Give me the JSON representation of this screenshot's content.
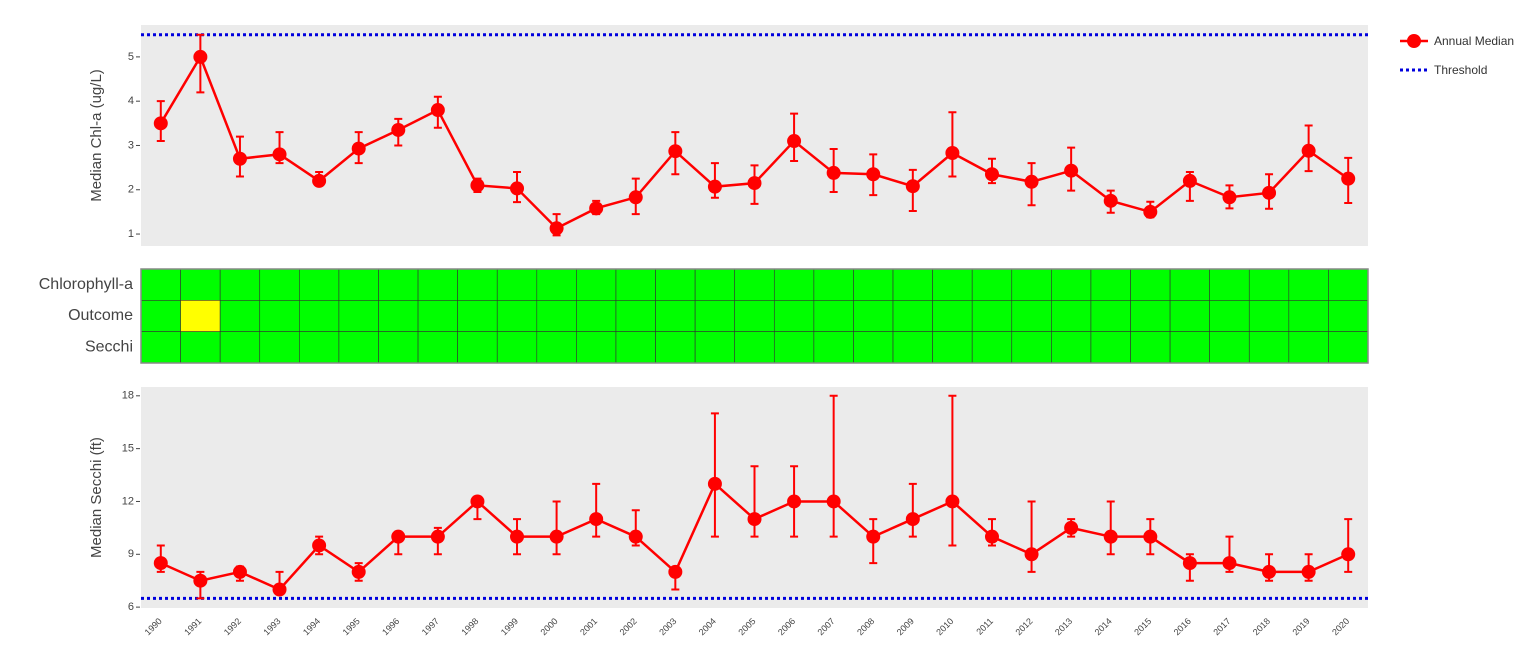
{
  "chart_data": [
    {
      "type": "line",
      "ylabel": "Median Chl-a (ug/L)",
      "series": [
        {
          "name": "Annual Median",
          "color": "#ff0000",
          "values": [
            3.5,
            5.0,
            2.7,
            2.8,
            2.2,
            2.93,
            3.35,
            3.8,
            2.1,
            2.03,
            1.13,
            1.58,
            1.83,
            2.87,
            2.07,
            2.15,
            3.1,
            2.38,
            2.35,
            2.08,
            2.83,
            2.35,
            2.18,
            2.43,
            1.75,
            1.5,
            2.2,
            1.83,
            1.93,
            2.88,
            2.25
          ],
          "upper": [
            4.0,
            5.5,
            3.2,
            3.3,
            2.4,
            3.3,
            3.6,
            4.1,
            2.25,
            2.4,
            1.45,
            1.75,
            2.25,
            3.3,
            2.6,
            2.55,
            3.72,
            2.92,
            2.8,
            2.45,
            3.75,
            2.7,
            2.6,
            2.95,
            1.98,
            1.73,
            2.4,
            2.1,
            2.35,
            3.45,
            2.72
          ],
          "lower": [
            3.1,
            4.2,
            2.3,
            2.6,
            2.1,
            2.6,
            3.0,
            3.4,
            1.95,
            1.72,
            0.97,
            1.45,
            1.45,
            2.35,
            1.82,
            1.68,
            2.65,
            1.95,
            1.88,
            1.52,
            2.3,
            2.15,
            1.65,
            1.98,
            1.48,
            1.38,
            1.75,
            1.58,
            1.57,
            2.42,
            1.7
          ]
        }
      ],
      "threshold": {
        "name": "Threshold",
        "color": "#0000dd",
        "value": 5.5
      },
      "ylim": [
        0.73,
        5.72
      ],
      "yticks": [
        1,
        2,
        3,
        4,
        5
      ],
      "grid": false
    },
    {
      "type": "heatmap",
      "rows": [
        "Chlorophyll-a",
        "Outcome",
        "Secchi"
      ],
      "colors": [
        [
          "#00ff00",
          "#00ff00",
          "#00ff00",
          "#00ff00",
          "#00ff00",
          "#00ff00",
          "#00ff00",
          "#00ff00",
          "#00ff00",
          "#00ff00",
          "#00ff00",
          "#00ff00",
          "#00ff00",
          "#00ff00",
          "#00ff00",
          "#00ff00",
          "#00ff00",
          "#00ff00",
          "#00ff00",
          "#00ff00",
          "#00ff00",
          "#00ff00",
          "#00ff00",
          "#00ff00",
          "#00ff00",
          "#00ff00",
          "#00ff00",
          "#00ff00",
          "#00ff00",
          "#00ff00",
          "#00ff00"
        ],
        [
          "#00ff00",
          "#ffff00",
          "#00ff00",
          "#00ff00",
          "#00ff00",
          "#00ff00",
          "#00ff00",
          "#00ff00",
          "#00ff00",
          "#00ff00",
          "#00ff00",
          "#00ff00",
          "#00ff00",
          "#00ff00",
          "#00ff00",
          "#00ff00",
          "#00ff00",
          "#00ff00",
          "#00ff00",
          "#00ff00",
          "#00ff00",
          "#00ff00",
          "#00ff00",
          "#00ff00",
          "#00ff00",
          "#00ff00",
          "#00ff00",
          "#00ff00",
          "#00ff00",
          "#00ff00",
          "#00ff00"
        ],
        [
          "#00ff00",
          "#00ff00",
          "#00ff00",
          "#00ff00",
          "#00ff00",
          "#00ff00",
          "#00ff00",
          "#00ff00",
          "#00ff00",
          "#00ff00",
          "#00ff00",
          "#00ff00",
          "#00ff00",
          "#00ff00",
          "#00ff00",
          "#00ff00",
          "#00ff00",
          "#00ff00",
          "#00ff00",
          "#00ff00",
          "#00ff00",
          "#00ff00",
          "#00ff00",
          "#00ff00",
          "#00ff00",
          "#00ff00",
          "#00ff00",
          "#00ff00",
          "#00ff00",
          "#00ff00",
          "#00ff00"
        ]
      ]
    },
    {
      "type": "line",
      "ylabel": "Median Secchi (ft)",
      "categories": [
        "1990",
        "1991",
        "1992",
        "1993",
        "1994",
        "1995",
        "1996",
        "1997",
        "1998",
        "1999",
        "2000",
        "2001",
        "2002",
        "2003",
        "2004",
        "2005",
        "2006",
        "2007",
        "2008",
        "2009",
        "2010",
        "2011",
        "2012",
        "2013",
        "2014",
        "2015",
        "2016",
        "2017",
        "2018",
        "2019",
        "2020"
      ],
      "series": [
        {
          "color": "#ff0000",
          "values": [
            8.5,
            7.5,
            8,
            7,
            9.5,
            8,
            10,
            10,
            12,
            10,
            10,
            11,
            10,
            8,
            13,
            11,
            12,
            12,
            10,
            11,
            12,
            10,
            9,
            10.5,
            10,
            10,
            8.5,
            8.5,
            8,
            8,
            9
          ],
          "upper": [
            9.5,
            8,
            8.3,
            8,
            10,
            8.5,
            10,
            10.5,
            12,
            11,
            12,
            13,
            11.5,
            8,
            17,
            14,
            14,
            18,
            11,
            13,
            18,
            11,
            12,
            11,
            12,
            11,
            9,
            10,
            9,
            9,
            11
          ],
          "lower": [
            8,
            6.5,
            7.5,
            7,
            9,
            7.5,
            9,
            9,
            11,
            9,
            9,
            10,
            9.5,
            7,
            10,
            10,
            10,
            10,
            8.5,
            10,
            9.5,
            9.5,
            8,
            10,
            9,
            9,
            7.5,
            8,
            7.5,
            7.5,
            8
          ]
        }
      ],
      "threshold": {
        "color": "#0000dd",
        "value": 6.5
      },
      "ylim": [
        5.95,
        18.5
      ],
      "yticks": [
        6,
        9,
        12,
        15,
        18
      ],
      "grid": false
    }
  ]
}
